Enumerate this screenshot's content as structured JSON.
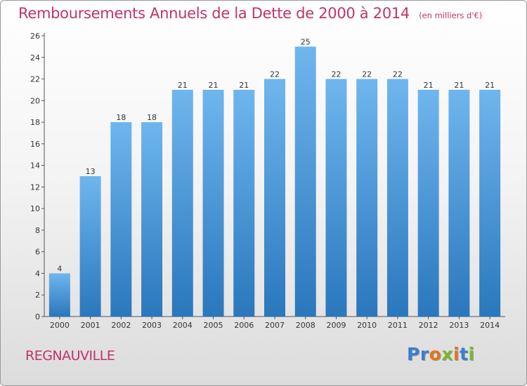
{
  "header": {
    "title": "Remboursements Annuels de la Dette de 2000 à 2014",
    "unit": "(en milliers d'€)"
  },
  "footer": {
    "commune": "REGNAUVILLE"
  },
  "brand": {
    "letters": [
      "P",
      "r",
      "o",
      "x",
      "i",
      "t",
      "i"
    ],
    "colors": [
      "#3a7fd0",
      "#3a7fd0",
      "#e3761b",
      "#7ab82e",
      "#e3761b",
      "#3a7fd0",
      "#7ab82e"
    ]
  },
  "colors": {
    "bar_top": "#6fb6ee",
    "bar_bottom": "#2a77bd",
    "title": "#c0336a",
    "axis": "#555555"
  },
  "chart_data": {
    "type": "bar",
    "title": "Remboursements Annuels de la Dette de 2000 à 2014",
    "xlabel": "",
    "ylabel": "",
    "categories": [
      "2000",
      "2001",
      "2002",
      "2003",
      "2004",
      "2005",
      "2006",
      "2007",
      "2008",
      "2009",
      "2010",
      "2011",
      "2012",
      "2013",
      "2014"
    ],
    "values": [
      4,
      13,
      18,
      18,
      21,
      21,
      21,
      22,
      25,
      22,
      22,
      22,
      21,
      21,
      21
    ],
    "ylim": [
      0,
      26
    ],
    "yticks": [
      0,
      2,
      4,
      6,
      8,
      10,
      12,
      14,
      16,
      18,
      20,
      22,
      24,
      26
    ],
    "grid": false,
    "data_labels": true
  }
}
